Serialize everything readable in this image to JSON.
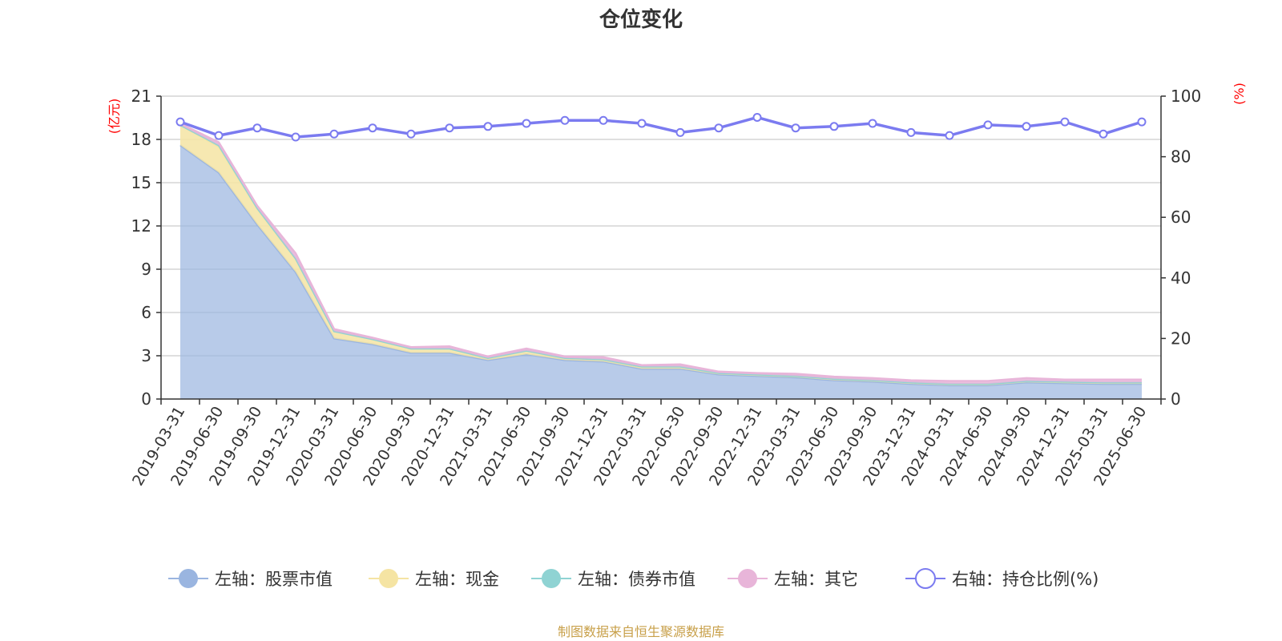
{
  "chart_data": {
    "type": "area",
    "title": "仓位变化",
    "left_axis_unit": "(亿元)",
    "right_axis_unit": "(%)",
    "left_ylim": [
      0,
      21
    ],
    "left_ticks": [
      0,
      3,
      6,
      9,
      12,
      15,
      18,
      21
    ],
    "right_ylim": [
      0,
      100
    ],
    "right_ticks": [
      0,
      20,
      40,
      60,
      80,
      100
    ],
    "grid": true,
    "legend_position": "bottom",
    "categories": [
      "2019-03-31",
      "2019-06-30",
      "2019-09-30",
      "2019-12-31",
      "2020-03-31",
      "2020-06-30",
      "2020-09-30",
      "2020-12-31",
      "2021-03-31",
      "2021-06-30",
      "2021-09-30",
      "2021-12-31",
      "2022-03-31",
      "2022-06-30",
      "2022-09-30",
      "2022-12-31",
      "2023-03-31",
      "2023-06-30",
      "2023-09-30",
      "2023-12-31",
      "2024-03-31",
      "2024-06-30",
      "2024-09-30",
      "2024-12-31",
      "2025-03-31",
      "2025-06-30"
    ],
    "series": [
      {
        "name": "左轴：股票市值",
        "axis": "left",
        "kind": "stacked-area",
        "color": "#9ab5e0",
        "values": [
          17.6,
          15.7,
          12.1,
          8.8,
          4.2,
          3.8,
          3.2,
          3.2,
          2.7,
          3.1,
          2.7,
          2.6,
          2.1,
          2.1,
          1.7,
          1.6,
          1.5,
          1.3,
          1.2,
          1.05,
          0.95,
          0.95,
          1.15,
          1.1,
          1.05,
          1.05
        ]
      },
      {
        "name": "左轴：现金",
        "axis": "left",
        "kind": "stacked-area",
        "color": "#f5e4a3",
        "values": [
          1.4,
          1.8,
          1.1,
          0.9,
          0.5,
          0.35,
          0.3,
          0.3,
          0.15,
          0.25,
          0.15,
          0.15,
          0.15,
          0.15,
          0.1,
          0.1,
          0.1,
          0.1,
          0.1,
          0.1,
          0.1,
          0.1,
          0.1,
          0.1,
          0.1,
          0.1
        ]
      },
      {
        "name": "左轴：债券市值",
        "axis": "left",
        "kind": "stacked-area",
        "color": "#8fd3d3",
        "values": [
          0,
          0.1,
          0.05,
          0.05,
          0,
          0,
          0,
          0,
          0,
          0,
          0,
          0,
          0,
          0,
          0,
          0,
          0,
          0,
          0,
          0,
          0,
          0,
          0,
          0,
          0,
          0
        ]
      },
      {
        "name": "左轴：其它",
        "axis": "left",
        "kind": "stacked-area",
        "color": "#e8b5d9",
        "values": [
          0.1,
          0.2,
          0.15,
          0.35,
          0.15,
          0.1,
          0.1,
          0.15,
          0.1,
          0.15,
          0.1,
          0.15,
          0.1,
          0.15,
          0.1,
          0.1,
          0.15,
          0.15,
          0.15,
          0.15,
          0.2,
          0.2,
          0.2,
          0.15,
          0.2,
          0.2
        ]
      },
      {
        "name": "右轴：持仓比例(%)",
        "axis": "right",
        "kind": "line",
        "color": "#7b7bf0",
        "values": [
          91.5,
          87,
          89.5,
          86.5,
          87.5,
          89.5,
          87.5,
          89.5,
          90,
          91,
          92,
          92,
          91,
          88,
          89.5,
          93,
          89.5,
          90,
          91,
          88,
          87,
          90.5,
          90,
          91.5,
          87.5,
          91.5
        ]
      }
    ]
  },
  "footer": {
    "source": "制图数据来自恒生聚源数据库"
  }
}
